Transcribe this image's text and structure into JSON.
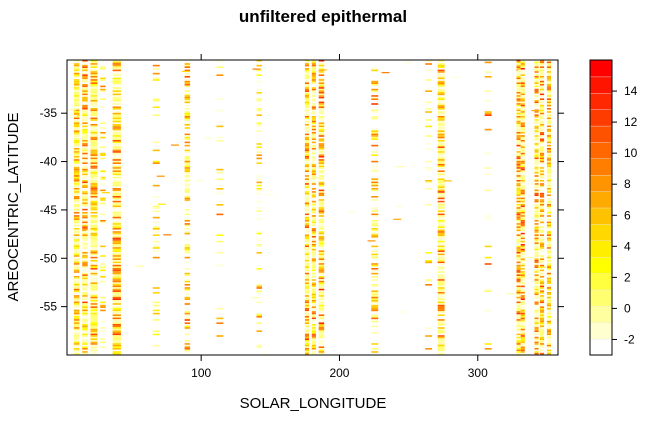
{
  "chart_data": {
    "type": "heatmap",
    "title": "unfiltered epithermal",
    "xlabel": "SOLAR_LONGITUDE",
    "ylabel": "AREOCENTRIC_LATITUDE",
    "xlim": [
      3,
      358
    ],
    "ylim": [
      -60,
      -29.5
    ],
    "x_ticks": [
      100,
      200,
      300
    ],
    "x_tick_labels": [
      "100",
      "200",
      "300"
    ],
    "y_ticks": [
      -35,
      -40,
      -45,
      -50,
      -55
    ],
    "y_tick_labels": [
      "-35",
      "-40",
      "-45",
      "-50",
      "-55"
    ],
    "colorbar": {
      "range": [
        -3,
        16
      ],
      "ticks": [
        -2,
        0,
        2,
        4,
        6,
        8,
        10,
        12,
        14
      ],
      "tick_labels": [
        "-2",
        "0",
        "2",
        "4",
        "6",
        "8",
        "10",
        "12",
        "14"
      ],
      "levels": [
        -3,
        -2,
        -1,
        0,
        1,
        2,
        3,
        4,
        5,
        6,
        7,
        8,
        9,
        10,
        11,
        12,
        13,
        14,
        15,
        16
      ],
      "colors": [
        "#ffffff",
        "#ffffd0",
        "#ffffa0",
        "#ffff70",
        "#ffff40",
        "#ffff00",
        "#ffee00",
        "#ffd800",
        "#ffc200",
        "#ffaa00",
        "#ff9400",
        "#ff7e00",
        "#ff6800",
        "#ff5200",
        "#ff3c00",
        "#ff2800",
        "#ff1400",
        "#ff0000"
      ]
    },
    "grid": false,
    "legend": "colorbar-right",
    "strips": [
      {
        "x": 8,
        "w": 4,
        "density": 0.95,
        "bias": 0.45
      },
      {
        "x": 14,
        "w": 4,
        "density": 0.9,
        "bias": 0.55
      },
      {
        "x": 20,
        "w": 5,
        "density": 0.95,
        "bias": 0.5
      },
      {
        "x": 27,
        "w": 4,
        "density": 0.3,
        "bias": 0.3
      },
      {
        "x": 36,
        "w": 6,
        "density": 0.95,
        "bias": 0.6
      },
      {
        "x": 65,
        "w": 5,
        "density": 0.2,
        "bias": 0.3
      },
      {
        "x": 88,
        "w": 4,
        "density": 0.6,
        "bias": 0.5
      },
      {
        "x": 111,
        "w": 5,
        "density": 0.15,
        "bias": 0.4
      },
      {
        "x": 140,
        "w": 4,
        "density": 0.25,
        "bias": 0.4
      },
      {
        "x": 175,
        "w": 3,
        "density": 0.95,
        "bias": 0.55
      },
      {
        "x": 180,
        "w": 3,
        "density": 0.9,
        "bias": 0.6
      },
      {
        "x": 185,
        "w": 4,
        "density": 0.9,
        "bias": 0.65
      },
      {
        "x": 223,
        "w": 5,
        "density": 0.4,
        "bias": 0.5
      },
      {
        "x": 262,
        "w": 5,
        "density": 0.2,
        "bias": 0.45
      },
      {
        "x": 271,
        "w": 5,
        "density": 0.85,
        "bias": 0.6
      },
      {
        "x": 305,
        "w": 5,
        "density": 0.15,
        "bias": 0.55
      },
      {
        "x": 328,
        "w": 3,
        "density": 0.95,
        "bias": 0.6
      },
      {
        "x": 331,
        "w": 3,
        "density": 0.95,
        "bias": 0.7
      },
      {
        "x": 341,
        "w": 3,
        "density": 0.9,
        "bias": 0.55
      },
      {
        "x": 345,
        "w": 3,
        "density": 0.9,
        "bias": 0.6
      },
      {
        "x": 350,
        "w": 3,
        "density": 0.9,
        "bias": 0.55
      }
    ]
  }
}
